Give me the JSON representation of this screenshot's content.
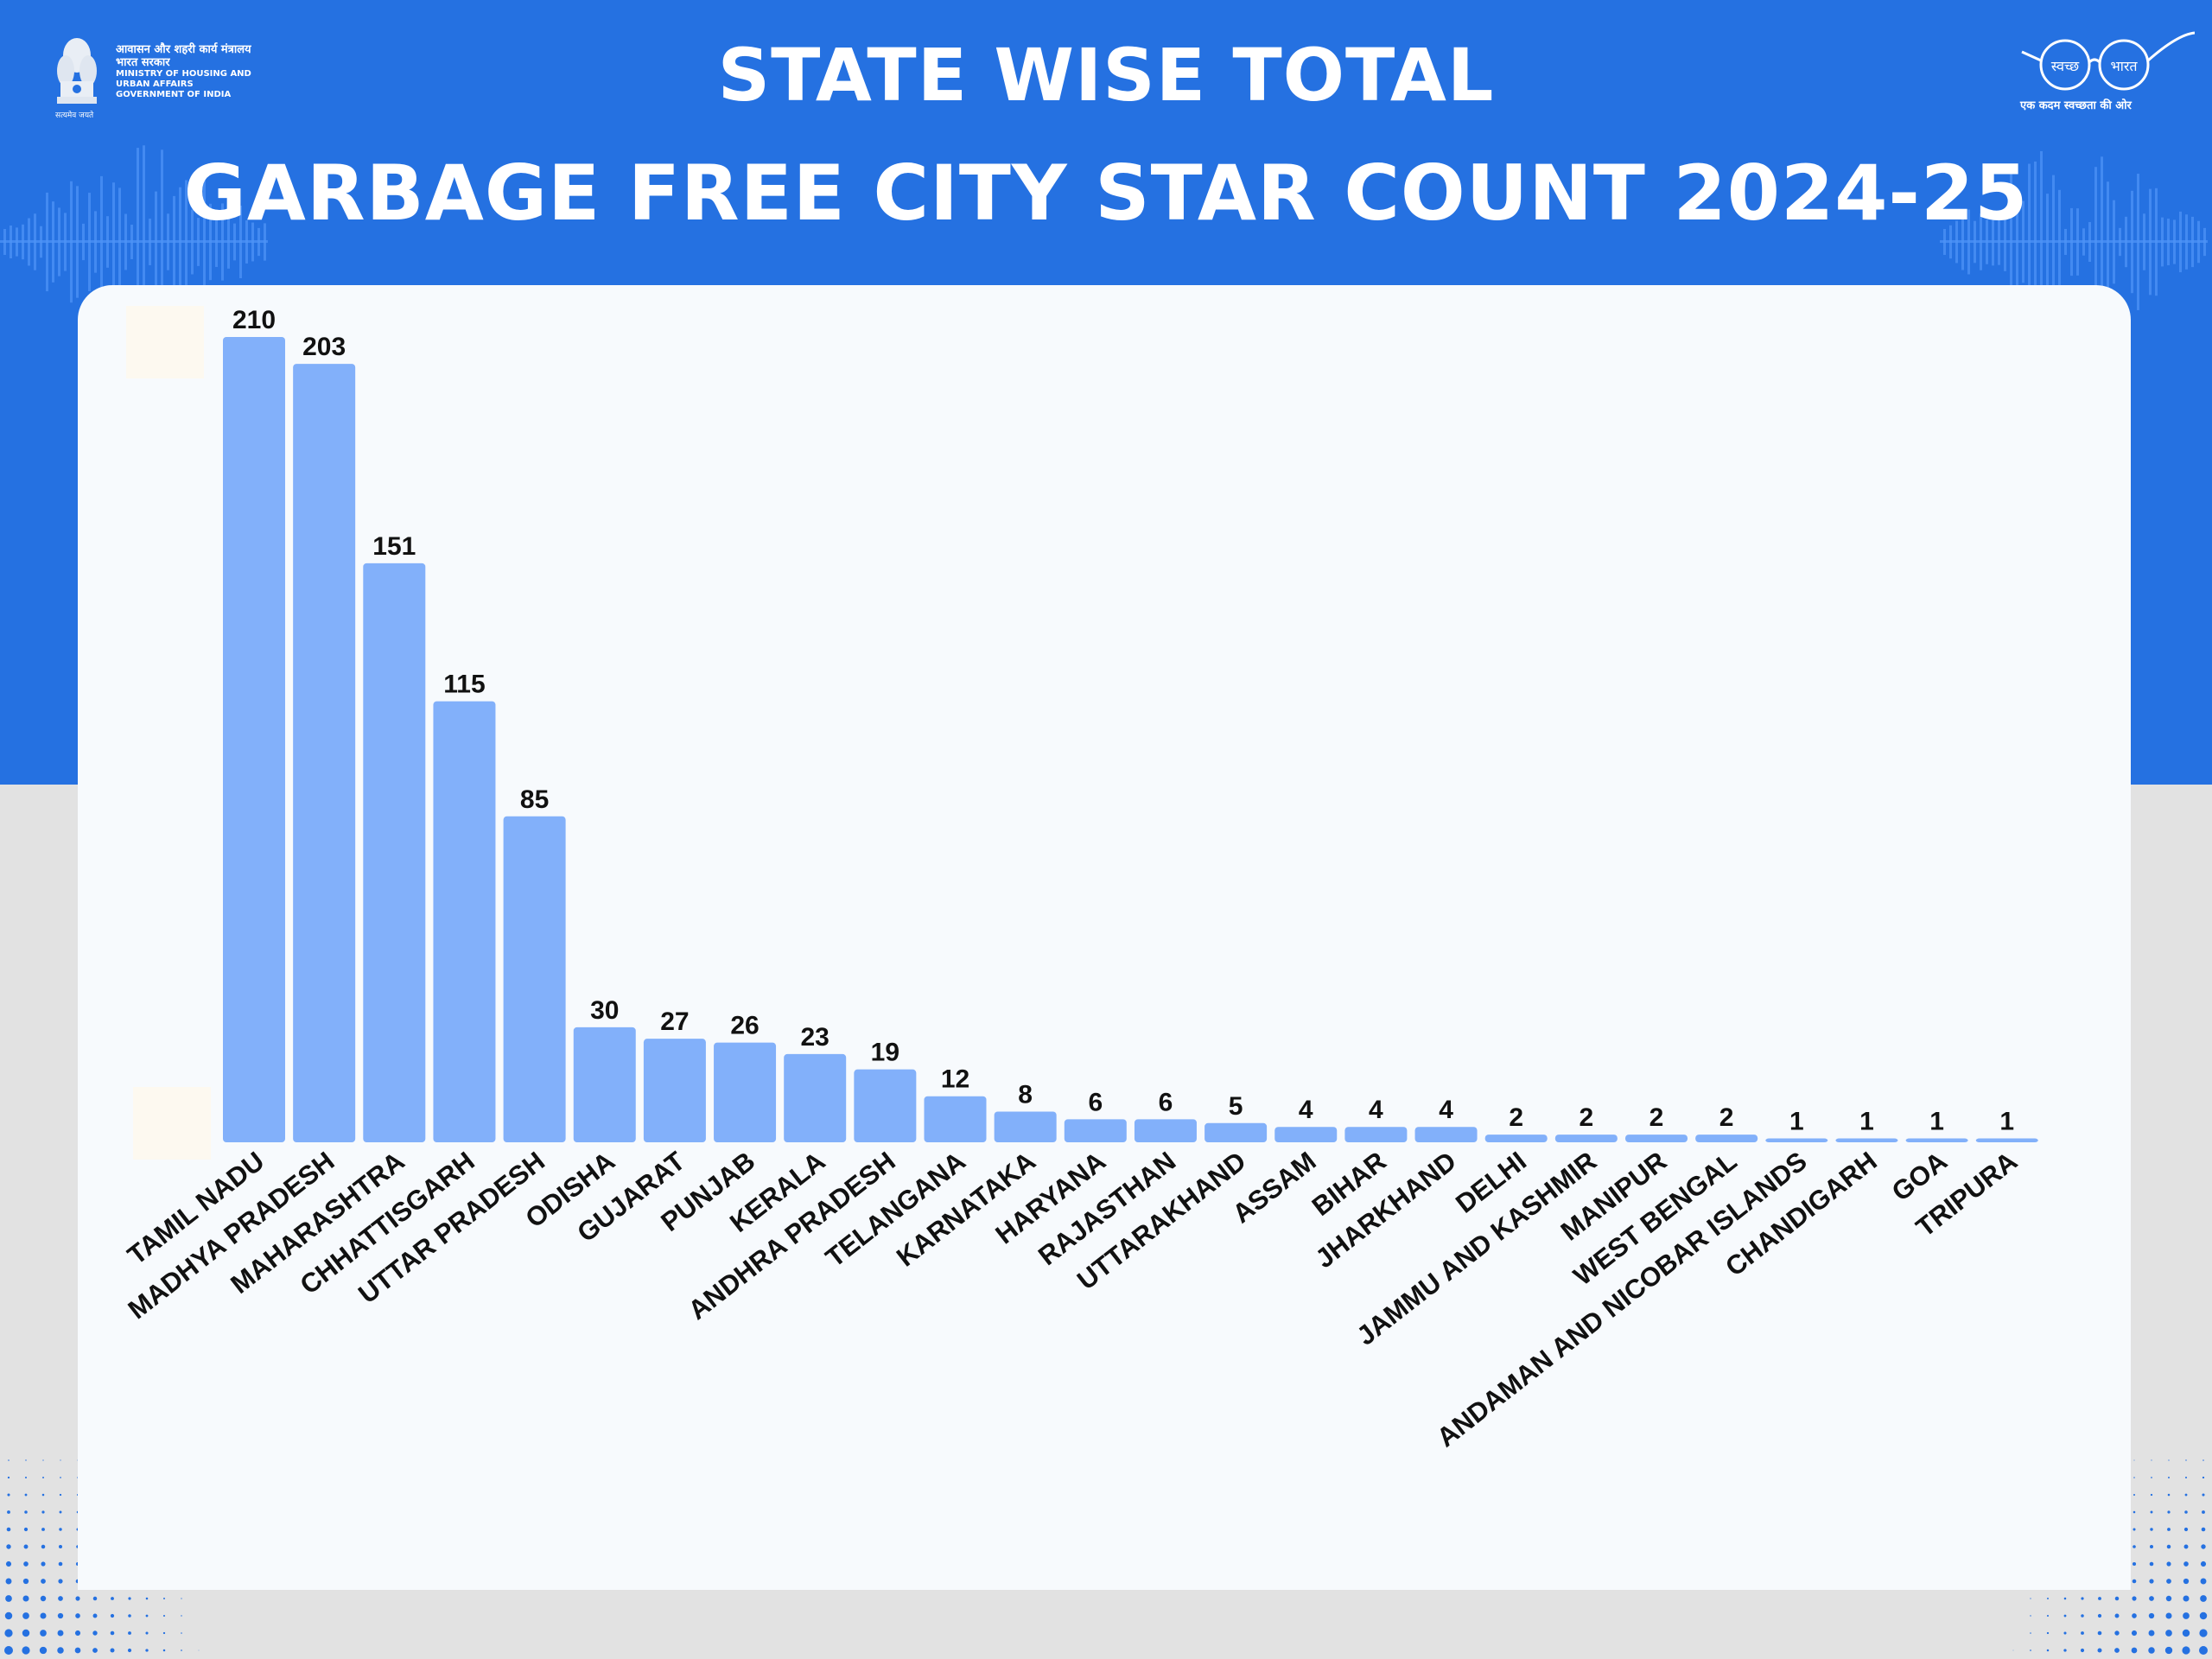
{
  "header": {
    "title_line1": "STATE WISE TOTAL",
    "title_line2": "GARBAGE FREE CITY STAR COUNT 2024-25"
  },
  "ministry_logo": {
    "hindi": "आवासन और शहरी कार्य मंत्रालय",
    "hindi2": "भारत सरकार",
    "line1": "MINISTRY OF HOUSING AND",
    "line2": "URBAN AFFAIRS",
    "line3": "GOVERNMENT OF INDIA",
    "motto": "सत्यमेव जयते"
  },
  "swachh_logo": {
    "left": "स्वच्छ",
    "right": "भारत",
    "tagline": "एक कदम स्वच्छता की ओर"
  },
  "colors": {
    "band": "#2571e1",
    "bar": "#82b0fa",
    "card": "#f7fafd",
    "accent_light": "#4d93f6"
  },
  "chart_data": {
    "type": "bar",
    "title": "STATE WISE TOTAL GARBAGE FREE CITY STAR COUNT 2024-25",
    "xlabel": "",
    "ylabel": "",
    "ylim": [
      0,
      210
    ],
    "grid": false,
    "legend": "none",
    "categories": [
      "TAMIL NADU",
      "MADHYA PRADESH",
      "MAHARASHTRA",
      "CHHATTISGARH",
      "UTTAR PRADESH",
      "ODISHA",
      "GUJARAT",
      "PUNJAB",
      "KERALA",
      "ANDHRA PRADESH",
      "TELANGANA",
      "KARNATAKA",
      "HARYANA",
      "RAJASTHAN",
      "UTTARAKHAND",
      "ASSAM",
      "BIHAR",
      "JHARKHAND",
      "DELHI",
      "JAMMU AND KASHMIR",
      "MANIPUR",
      "WEST BENGAL",
      "ANDAMAN AND NICOBAR ISLANDS",
      "CHANDIGARH",
      "GOA",
      "TRIPURA"
    ],
    "values": [
      210,
      203,
      151,
      115,
      85,
      30,
      27,
      26,
      23,
      19,
      12,
      8,
      6,
      6,
      5,
      4,
      4,
      4,
      2,
      2,
      2,
      2,
      1,
      1,
      1,
      1
    ]
  }
}
